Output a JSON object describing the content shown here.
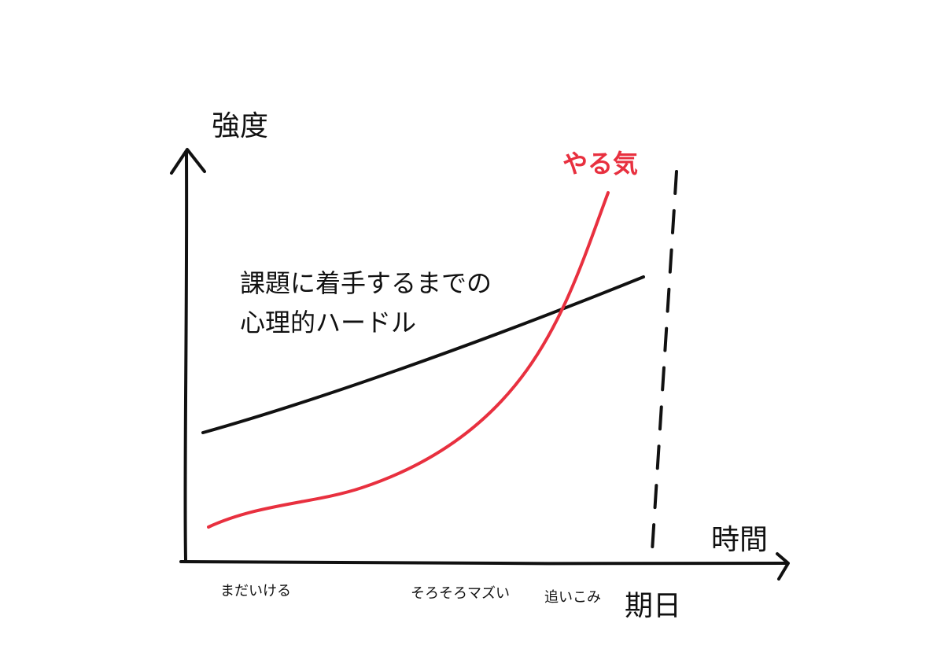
{
  "axes": {
    "y_label": "強度",
    "x_label": "時間"
  },
  "curves": {
    "motivation": "やる気",
    "hurdle": [
      "課題に着手するまでの",
      "心理的ハードル"
    ]
  },
  "phases": [
    "まだいける",
    "そろそろマズい",
    "追いこみ"
  ],
  "deadline": "期日"
}
